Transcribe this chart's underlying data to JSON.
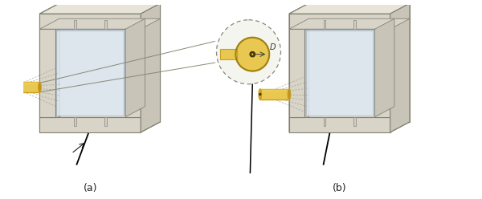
{
  "fig_width": 6.0,
  "fig_height": 2.48,
  "dpi": 100,
  "bg_color": "#ffffff",
  "label_a": "(a)",
  "label_b": "(b)",
  "label_fontsize": 9,
  "frame_face": "#d8d4c8",
  "frame_top": "#e8e4d8",
  "frame_right": "#c8c4b8",
  "frame_inner": "#e0ddd0",
  "glass_face": "#dce8f0",
  "glass_edge": "#b0b8c8",
  "nozzle_body": "#e8c850",
  "nozzle_dark": "#c8a020",
  "nozzle_end": "#d4a820",
  "jet_color": "#a0a090",
  "line_color": "#000000",
  "inset_bg": "#f5f5f0",
  "inset_edge": "#888880",
  "peg_color": "#d0ccc0",
  "peg_edge": "#888880"
}
